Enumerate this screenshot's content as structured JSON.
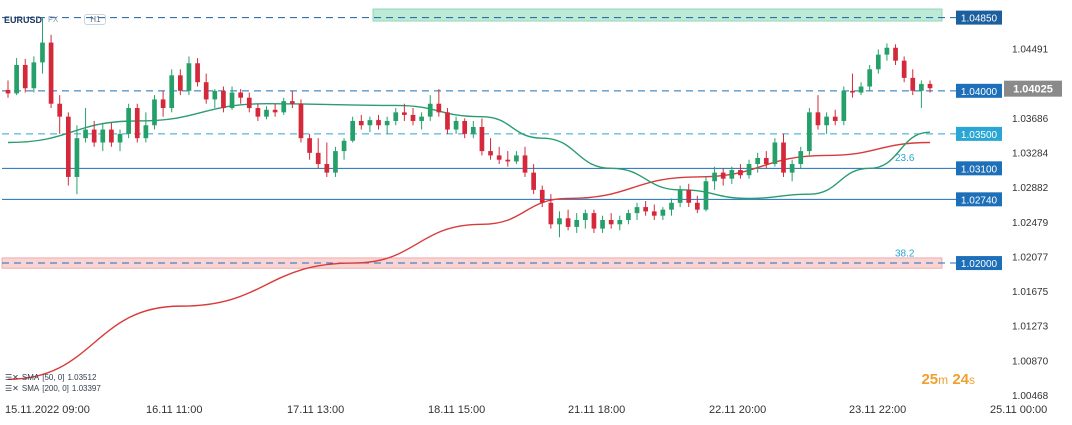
{
  "header": {
    "symbol": "EURUSD",
    "market_tag": "FX",
    "timeframe": "H1"
  },
  "timer": {
    "minutes": "25",
    "m_unit": "m",
    "seconds": "24",
    "s_unit": "s"
  },
  "indicators": [
    {
      "label": "SMA",
      "params": "[50, 0]",
      "value": "1.03512",
      "color": "#2a9d70"
    },
    {
      "label": "SMA",
      "params": "[200, 0]",
      "value": "1.03397",
      "color": "#d93a3a"
    }
  ],
  "chart_data": {
    "type": "candlestick",
    "y_range": [
      1.00468,
      1.0495
    ],
    "y_ticks": [
      "1.04491",
      "1.04000",
      "1.03686",
      "1.03284",
      "1.02882",
      "1.02479",
      "1.02077",
      "1.01675",
      "1.01273",
      "1.00870",
      "1.00468"
    ],
    "x_ticks": [
      "15.11.2022  09:00",
      "16.11  11:00",
      "17.11  13:00",
      "18.11  15:00",
      "21.11  18:00",
      "22.11  20:00",
      "23.11  22:00",
      "25.11  00:00"
    ],
    "last_price": "1.04025",
    "horizontal_levels": [
      {
        "price": 1.0485,
        "label": "1.04850",
        "style": "dashed",
        "color": "#1c5f9f"
      },
      {
        "price": 1.04,
        "label": "1.04000",
        "style": "dashed",
        "color": "#1c6fb8"
      },
      {
        "price": 1.035,
        "label": "1.03500",
        "style": "dashed",
        "color": "#2aa6d4"
      },
      {
        "price": 1.031,
        "label": "1.03100",
        "style": "solid",
        "color": "#1c6fb8"
      },
      {
        "price": 1.0274,
        "label": "1.02740",
        "style": "solid",
        "color": "#1c6fb8"
      },
      {
        "price": 1.02,
        "label": "1.02000",
        "style": "dashed",
        "color": "#1c6fb8"
      }
    ],
    "zones": [
      {
        "from": 1.0481,
        "to": 1.0495,
        "color": "#a6e3c9"
      },
      {
        "from": 1.0194,
        "to": 1.0206,
        "color": "#f6c6c6"
      }
    ],
    "fib_labels": [
      {
        "text": "23.6",
        "price": 1.0315
      },
      {
        "text": "38.2",
        "price": 1.0204
      }
    ],
    "candles_ohlc": [
      [
        1.0401,
        1.0412,
        1.0392,
        1.0397
      ],
      [
        1.0397,
        1.0438,
        1.0395,
        1.043
      ],
      [
        1.043,
        1.0437,
        1.0398,
        1.0403
      ],
      [
        1.0403,
        1.044,
        1.0398,
        1.0433
      ],
      [
        1.0433,
        1.0485,
        1.042,
        1.0456
      ],
      [
        1.0456,
        1.0465,
        1.038,
        1.0385
      ],
      [
        1.0385,
        1.0395,
        1.035,
        1.037
      ],
      [
        1.037,
        1.0375,
        1.029,
        1.03
      ],
      [
        1.03,
        1.036,
        1.028,
        1.0345
      ],
      [
        1.0345,
        1.038,
        1.034,
        1.0355
      ],
      [
        1.0355,
        1.0365,
        1.0335,
        1.034
      ],
      [
        1.034,
        1.0362,
        1.033,
        1.0355
      ],
      [
        1.0355,
        1.0363,
        1.0335,
        1.034
      ],
      [
        1.034,
        1.0355,
        1.033,
        1.035
      ],
      [
        1.035,
        1.0385,
        1.0345,
        1.038
      ],
      [
        1.038,
        1.0385,
        1.034,
        1.0345
      ],
      [
        1.0345,
        1.0375,
        1.034,
        1.036
      ],
      [
        1.036,
        1.0395,
        1.0355,
        1.039
      ],
      [
        1.039,
        1.04,
        1.037,
        1.038
      ],
      [
        1.038,
        1.0425,
        1.0375,
        1.0418
      ],
      [
        1.0418,
        1.0425,
        1.0395,
        1.04
      ],
      [
        1.04,
        1.044,
        1.0395,
        1.0432
      ],
      [
        1.0432,
        1.0438,
        1.0405,
        1.041
      ],
      [
        1.041,
        1.042,
        1.0385,
        1.039
      ],
      [
        1.039,
        1.0402,
        1.038,
        1.04
      ],
      [
        1.04,
        1.0405,
        1.0375,
        1.038
      ],
      [
        1.038,
        1.0405,
        1.0378,
        1.0398
      ],
      [
        1.0398,
        1.0402,
        1.0385,
        1.0392
      ],
      [
        1.0392,
        1.0398,
        1.0375,
        1.038
      ],
      [
        1.038,
        1.0385,
        1.0365,
        1.037
      ],
      [
        1.037,
        1.0382,
        1.0367,
        1.0378
      ],
      [
        1.0378,
        1.0385,
        1.037,
        1.0375
      ],
      [
        1.0375,
        1.0392,
        1.0372,
        1.0388
      ],
      [
        1.0388,
        1.04,
        1.038,
        1.0385
      ],
      [
        1.0385,
        1.039,
        1.034,
        1.0345
      ],
      [
        1.0345,
        1.035,
        1.032,
        1.0328
      ],
      [
        1.0328,
        1.0345,
        1.031,
        1.0315
      ],
      [
        1.0315,
        1.034,
        1.03,
        1.0305
      ],
      [
        1.0305,
        1.0335,
        1.03,
        1.033
      ],
      [
        1.033,
        1.0345,
        1.032,
        1.0342
      ],
      [
        1.0342,
        1.037,
        1.034,
        1.0365
      ],
      [
        1.0365,
        1.0372,
        1.0355,
        1.036
      ],
      [
        1.036,
        1.037,
        1.0352,
        1.0366
      ],
      [
        1.0366,
        1.0372,
        1.0355,
        1.036
      ],
      [
        1.036,
        1.037,
        1.035,
        1.0365
      ],
      [
        1.0365,
        1.038,
        1.036,
        1.0375
      ],
      [
        1.0375,
        1.0385,
        1.0365,
        1.0372
      ],
      [
        1.0372,
        1.038,
        1.036,
        1.0365
      ],
      [
        1.0365,
        1.0375,
        1.0355,
        1.037
      ],
      [
        1.037,
        1.0395,
        1.0365,
        1.0385
      ],
      [
        1.0385,
        1.0402,
        1.037,
        1.0375
      ],
      [
        1.0375,
        1.038,
        1.035,
        1.0355
      ],
      [
        1.0355,
        1.037,
        1.035,
        1.0365
      ],
      [
        1.0365,
        1.0368,
        1.0345,
        1.035
      ],
      [
        1.035,
        1.0365,
        1.0345,
        1.0358
      ],
      [
        1.0358,
        1.0368,
        1.0325,
        1.033
      ],
      [
        1.033,
        1.0345,
        1.032,
        1.0325
      ],
      [
        1.0325,
        1.0335,
        1.0315,
        1.032
      ],
      [
        1.032,
        1.033,
        1.0312,
        1.0318
      ],
      [
        1.0318,
        1.033,
        1.0315,
        1.0325
      ],
      [
        1.0325,
        1.0335,
        1.03,
        1.0305
      ],
      [
        1.0305,
        1.0315,
        1.028,
        1.0285
      ],
      [
        1.0285,
        1.029,
        1.0265,
        1.027
      ],
      [
        1.027,
        1.028,
        1.024,
        1.0245
      ],
      [
        1.0245,
        1.026,
        1.023,
        1.0252
      ],
      [
        1.0252,
        1.0262,
        1.0238,
        1.0242
      ],
      [
        1.0242,
        1.0258,
        1.0235,
        1.025
      ],
      [
        1.025,
        1.0262,
        1.024,
        1.0258
      ],
      [
        1.0258,
        1.0262,
        1.0235,
        1.024
      ],
      [
        1.024,
        1.0255,
        1.0235,
        1.025
      ],
      [
        1.025,
        1.0258,
        1.024,
        1.0245
      ],
      [
        1.0245,
        1.0255,
        1.0238,
        1.025
      ],
      [
        1.025,
        1.0262,
        1.0245,
        1.0258
      ],
      [
        1.0258,
        1.027,
        1.025,
        1.0265
      ],
      [
        1.0265,
        1.0272,
        1.0255,
        1.026
      ],
      [
        1.026,
        1.0268,
        1.025,
        1.0255
      ],
      [
        1.0255,
        1.0265,
        1.025,
        1.0262
      ],
      [
        1.0262,
        1.0275,
        1.0255,
        1.027
      ],
      [
        1.027,
        1.029,
        1.0265,
        1.0285
      ],
      [
        1.0285,
        1.0292,
        1.0265,
        1.027
      ],
      [
        1.027,
        1.0278,
        1.0258,
        1.0262
      ],
      [
        1.0262,
        1.03,
        1.026,
        1.0295
      ],
      [
        1.0295,
        1.0312,
        1.0285,
        1.0305
      ],
      [
        1.0305,
        1.031,
        1.029,
        1.0298
      ],
      [
        1.0298,
        1.0312,
        1.0292,
        1.0308
      ],
      [
        1.0308,
        1.0315,
        1.0298,
        1.0302
      ],
      [
        1.0302,
        1.032,
        1.0298,
        1.0315
      ],
      [
        1.0315,
        1.0328,
        1.0305,
        1.0322
      ],
      [
        1.0322,
        1.033,
        1.031,
        1.0315
      ],
      [
        1.0315,
        1.0345,
        1.0312,
        1.034
      ],
      [
        1.034,
        1.035,
        1.03,
        1.0305
      ],
      [
        1.0305,
        1.032,
        1.0295,
        1.0315
      ],
      [
        1.0315,
        1.0335,
        1.031,
        1.033
      ],
      [
        1.033,
        1.038,
        1.0325,
        1.0375
      ],
      [
        1.0375,
        1.0395,
        1.0355,
        1.036
      ],
      [
        1.036,
        1.0375,
        1.035,
        1.037
      ],
      [
        1.037,
        1.0378,
        1.036,
        1.0365
      ],
      [
        1.0365,
        1.0405,
        1.036,
        1.04
      ],
      [
        1.04,
        1.042,
        1.0392,
        1.0398
      ],
      [
        1.0398,
        1.041,
        1.0395,
        1.0405
      ],
      [
        1.0405,
        1.043,
        1.04,
        1.0425
      ],
      [
        1.0425,
        1.0448,
        1.042,
        1.0442
      ],
      [
        1.0442,
        1.0455,
        1.0435,
        1.045
      ],
      [
        1.045,
        1.0454,
        1.043,
        1.0435
      ],
      [
        1.0435,
        1.044,
        1.041,
        1.0415
      ],
      [
        1.0415,
        1.0425,
        1.0395,
        1.04
      ],
      [
        1.04,
        1.0412,
        1.038,
        1.0408
      ],
      [
        1.0408,
        1.0412,
        1.0398,
        1.0403
      ]
    ],
    "sma50_points": [
      [
        0,
        1.034
      ],
      [
        15,
        1.0365
      ],
      [
        30,
        1.0385
      ],
      [
        45,
        1.0383
      ],
      [
        55,
        1.037
      ],
      [
        62,
        1.0345
      ],
      [
        70,
        1.031
      ],
      [
        78,
        1.0285
      ],
      [
        86,
        1.0275
      ],
      [
        93,
        1.028
      ],
      [
        100,
        1.031
      ],
      [
        107,
        1.0352
      ]
    ],
    "sma200_points": [
      [
        0,
        1.0065
      ],
      [
        20,
        1.015
      ],
      [
        40,
        1.02
      ],
      [
        55,
        1.0245
      ],
      [
        65,
        1.0275
      ],
      [
        80,
        1.03
      ],
      [
        95,
        1.0325
      ],
      [
        107,
        1.034
      ]
    ]
  }
}
